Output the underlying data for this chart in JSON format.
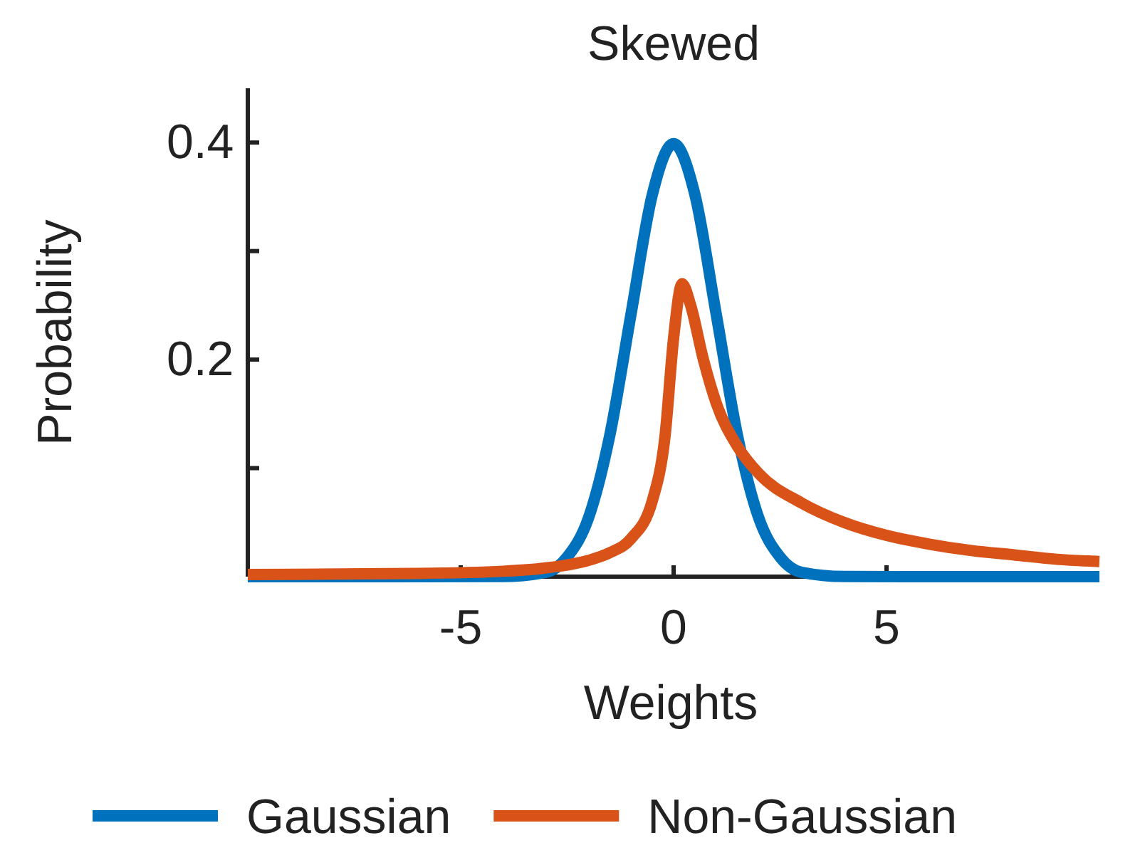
{
  "chart_data": {
    "type": "line",
    "title": "Skewed",
    "xlabel": "Weights",
    "ylabel": "Probability",
    "xlim": [
      -10,
      10
    ],
    "xticks": [
      -5,
      0,
      5
    ],
    "ylim": [
      0,
      0.45
    ],
    "yticks": [
      {
        "value": 0.1,
        "label": null
      },
      0.2,
      {
        "value": 0.3,
        "label": null
      },
      0.4
    ],
    "grid": false,
    "legend": "bottom",
    "marker": "none",
    "line_style": "solid",
    "series": [
      {
        "name": "Gaussian",
        "color": "#0072bd",
        "x": [
          -10,
          -4,
          -3,
          -2.5,
          -2,
          -1.5,
          -1,
          -0.5,
          0,
          0.5,
          1,
          1.5,
          2,
          2.5,
          3,
          4,
          10
        ],
        "values": [
          0,
          0.0001,
          0.004,
          0.018,
          0.054,
          0.13,
          0.242,
          0.352,
          0.399,
          0.352,
          0.242,
          0.13,
          0.054,
          0.018,
          0.004,
          0.0001,
          0
        ]
      },
      {
        "name": "Non-Gaussian",
        "color": "#d95319",
        "x": [
          -10,
          -6,
          -4,
          -3,
          -2,
          -1.5,
          -1,
          -0.5,
          -0.2,
          0,
          0.2,
          0.4,
          0.7,
          1,
          1.5,
          2,
          3,
          4,
          5,
          6,
          7,
          8,
          9,
          10
        ],
        "values": [
          0.002,
          0.003,
          0.005,
          0.008,
          0.015,
          0.022,
          0.035,
          0.07,
          0.13,
          0.22,
          0.27,
          0.25,
          0.2,
          0.16,
          0.12,
          0.095,
          0.068,
          0.05,
          0.038,
          0.03,
          0.024,
          0.02,
          0.016,
          0.014
        ]
      }
    ]
  }
}
